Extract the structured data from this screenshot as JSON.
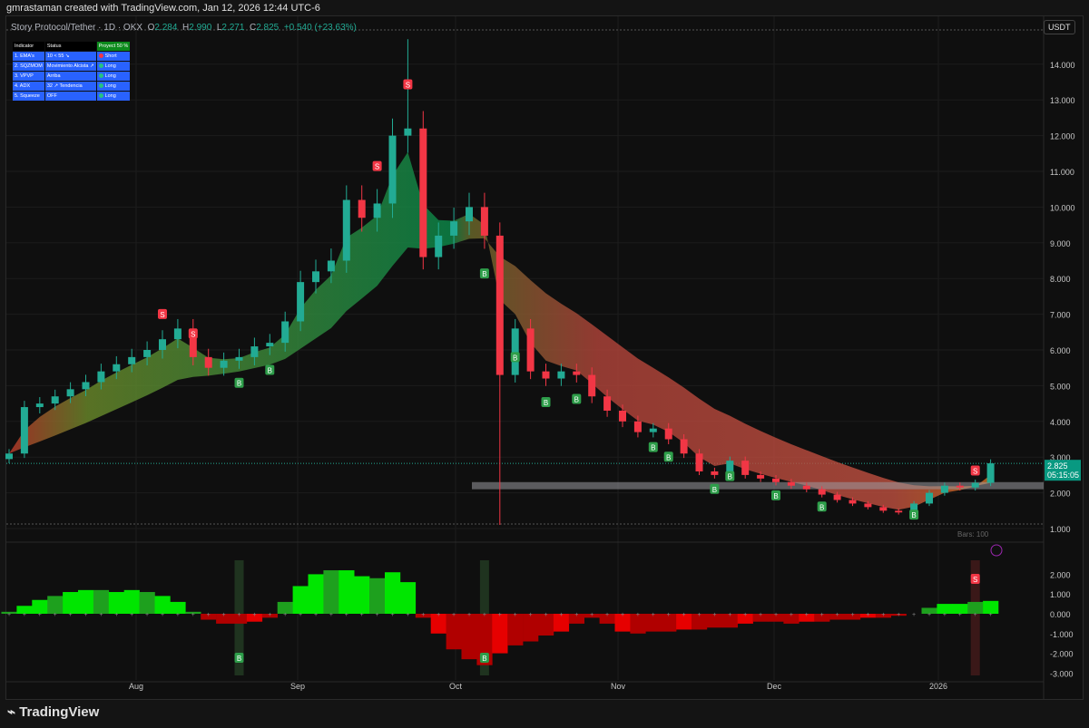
{
  "credit": "gmrastaman created with TradingView.com, Jan 12, 2026 12:44 UTC-6",
  "legend": {
    "symbol": "Story Protocol/Tether · 1D · OKX",
    "o_label": "O",
    "o": "2.284",
    "h_label": "H",
    "h": "2.990",
    "l_label": "L",
    "l": "2.271",
    "c_label": "C",
    "c": "2.825",
    "change": "+0.540 (+23.63%)"
  },
  "currency": "USDT",
  "table": {
    "headers": [
      "Indicator",
      "Status",
      "Proyect 50 %"
    ],
    "rows": [
      [
        "1. EMA's",
        "10 < 55 ↘",
        "Short",
        "#f23645"
      ],
      [
        "2. SQZMOM",
        "Movimiento Alcista ↗",
        "Long",
        "#26c281"
      ],
      [
        "3. VPVP",
        "Arriba",
        "Long",
        "#26c281"
      ],
      [
        "4. ADX",
        "32 ↗ Tendencia",
        "Long",
        "#26c281"
      ],
      [
        "5. Squeeze",
        "OFF",
        "Long",
        "#26c281"
      ]
    ]
  },
  "price_label": {
    "price": "2.825",
    "countdown": "05:15:05"
  },
  "bars_label": "Bars: 100",
  "footer": "TradingView",
  "colors": {
    "up": "#22ab94",
    "down": "#f23645",
    "osc_pos": "#00e600",
    "osc_neg": "#e60000",
    "bg": "#0f0f0f"
  },
  "chart_data": {
    "type": "candlestick",
    "y_ticks": [
      "14.000",
      "13.000",
      "12.000",
      "11.000",
      "10.000",
      "9.000",
      "8.000",
      "7.000",
      "6.000",
      "5.000",
      "4.000",
      "3.000",
      "2.000",
      "1.000"
    ],
    "x_ticks": [
      "Aug",
      "Sep",
      "Oct",
      "Nov",
      "Dec",
      "2026"
    ],
    "interval_days_per_point": 3,
    "close": [
      3.1,
      4.4,
      4.5,
      4.7,
      4.9,
      5.1,
      5.4,
      5.6,
      5.8,
      6.0,
      6.3,
      6.6,
      5.8,
      5.5,
      5.7,
      5.8,
      6.1,
      6.2,
      6.8,
      7.9,
      8.2,
      8.5,
      10.2,
      9.7,
      10.1,
      12.0,
      12.2,
      8.6,
      9.2,
      9.6,
      10.0,
      9.2,
      5.3,
      6.6,
      5.4,
      5.2,
      5.4,
      5.3,
      4.7,
      4.3,
      4.0,
      3.7,
      3.8,
      3.5,
      3.1,
      2.6,
      2.5,
      2.9,
      2.5,
      2.4,
      2.3,
      2.2,
      2.1,
      1.95,
      1.8,
      1.7,
      1.6,
      1.5,
      1.45,
      1.7,
      2.0,
      2.2,
      2.15,
      2.28,
      2.825
    ],
    "extremes": {
      "high": 14.7,
      "low": 1.1
    },
    "zone": [
      2.1,
      2.3
    ],
    "signals": {
      "sell": [
        10,
        12,
        24,
        26,
        63
      ],
      "buy": [
        15,
        17,
        31,
        33,
        35,
        37,
        42,
        43,
        46,
        47,
        50,
        53,
        59
      ]
    },
    "oscillator": {
      "y_ticks": [
        "2.000",
        "1.000",
        "0.000",
        "-1.000",
        "-2.000",
        "-3.000"
      ],
      "values": [
        0.1,
        0.4,
        0.7,
        0.9,
        1.1,
        1.2,
        1.2,
        1.1,
        1.2,
        1.1,
        0.9,
        0.6,
        0.1,
        -0.3,
        -0.5,
        -0.5,
        -0.4,
        -0.2,
        0.6,
        1.4,
        2.0,
        2.2,
        2.2,
        1.9,
        1.8,
        2.1,
        1.6,
        -0.2,
        -1.0,
        -1.8,
        -2.3,
        -2.6,
        -2.0,
        -1.6,
        -1.4,
        -1.1,
        -0.9,
        -0.5,
        -0.2,
        -0.5,
        -0.9,
        -1.0,
        -0.9,
        -0.9,
        -0.8,
        -0.8,
        -0.7,
        -0.7,
        -0.5,
        -0.4,
        -0.4,
        -0.5,
        -0.4,
        -0.4,
        -0.3,
        -0.3,
        -0.2,
        -0.2,
        -0.1,
        0.0,
        0.3,
        0.5,
        0.5,
        0.6,
        0.65
      ],
      "buy": [
        15,
        31
      ],
      "sell": [
        63
      ]
    }
  }
}
